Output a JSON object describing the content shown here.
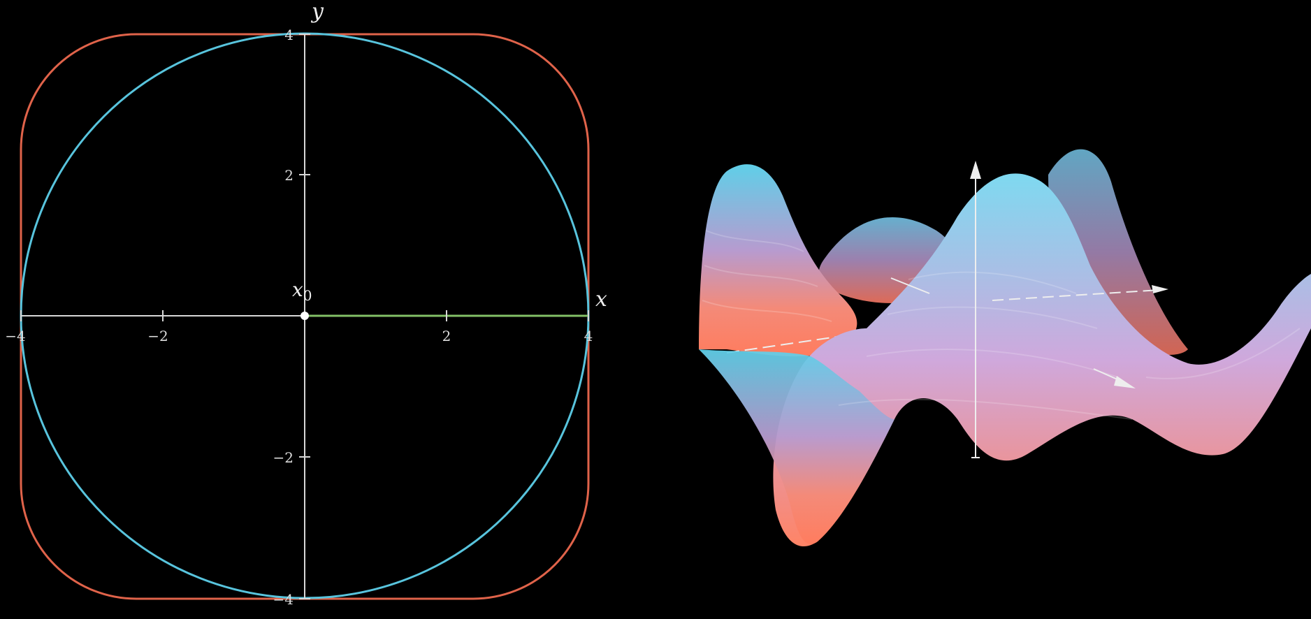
{
  "left_plot": {
    "x_axis_label": "x",
    "y_axis_label": "y",
    "point_label_base": "x",
    "point_label_sub": "0",
    "x_ticks": [
      {
        "value": -4,
        "label": "−4"
      },
      {
        "value": -2,
        "label": "−2"
      },
      {
        "value": 2,
        "label": "2"
      },
      {
        "value": 4,
        "label": "4"
      }
    ],
    "y_ticks": [
      {
        "value": 4,
        "label": "4"
      },
      {
        "value": 2,
        "label": "2"
      },
      {
        "value": -2,
        "label": "−2"
      },
      {
        "value": -4,
        "label": "−4"
      }
    ],
    "axis_range": {
      "x": [
        -4,
        4
      ],
      "y": [
        -4,
        4
      ]
    },
    "point": {
      "x": 0,
      "y": 0
    },
    "circle_radius": 4,
    "segment": {
      "from": [
        0,
        0
      ],
      "to": [
        4,
        0
      ]
    },
    "colors": {
      "axes": "#d8d8d8",
      "circle": "#58c4dd",
      "rounded_square": "#e0634a",
      "segment": "#83c167",
      "point": "#ffffff"
    }
  },
  "right_plot": {
    "type": "3d-surface",
    "colors": {
      "high": "#58c4dd",
      "mid": "#b89bc8",
      "low": "#ff7a5c",
      "axes": "#eeeeee"
    }
  }
}
